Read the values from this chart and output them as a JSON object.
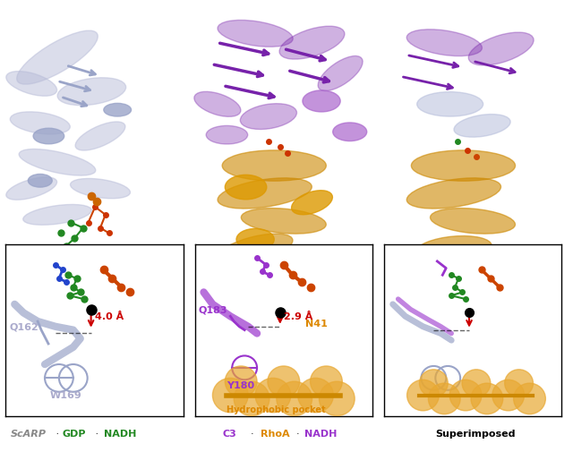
{
  "title": "",
  "panel_labels": {
    "bottom_left": "ScARP",
    "bottom_left_sep1": " · ",
    "bottom_left_gdp": "GDP",
    "bottom_left_sep2": " · ",
    "bottom_left_nadh": "NADH",
    "bottom_mid": "C3",
    "bottom_mid_sep1": "·",
    "bottom_mid_rhoa": "RhoA",
    "bottom_mid_sep2": "·",
    "bottom_mid_nadh": "NADH",
    "bottom_right": "Superimposed"
  },
  "colors": {
    "scarp": "#8888aa",
    "gdp": "#22aa22",
    "nadh_dark": "#228822",
    "c3": "#9933cc",
    "rhoa": "#dd8800",
    "superimposed": "#000000",
    "distance_red": "#cc0000",
    "label_q162": "#aaaacc",
    "label_w169": "#aaaacc",
    "label_q183": "#9933cc",
    "label_n41": "#dd8800",
    "label_y180": "#9933cc",
    "hydrophobic_label": "#dd8800",
    "panel_bg": "#ffffff",
    "border": "#000000",
    "protein_light": "#b0b8d8",
    "protein_purple": "#7722aa",
    "protein_orange": "#cc8800"
  },
  "annotations": {
    "panel1_dist": "4.0 Å",
    "panel1_q162": "Q162",
    "panel1_w169": "W169",
    "panel2_dist": "2.9 Å",
    "panel2_q183": "Q183",
    "panel2_n41": "N41",
    "panel2_y180": "Y180",
    "panel2_hydrophobic": "Hydrophobic pocket"
  },
  "figure_width": 6.4,
  "figure_height": 5.05,
  "dpi": 100
}
